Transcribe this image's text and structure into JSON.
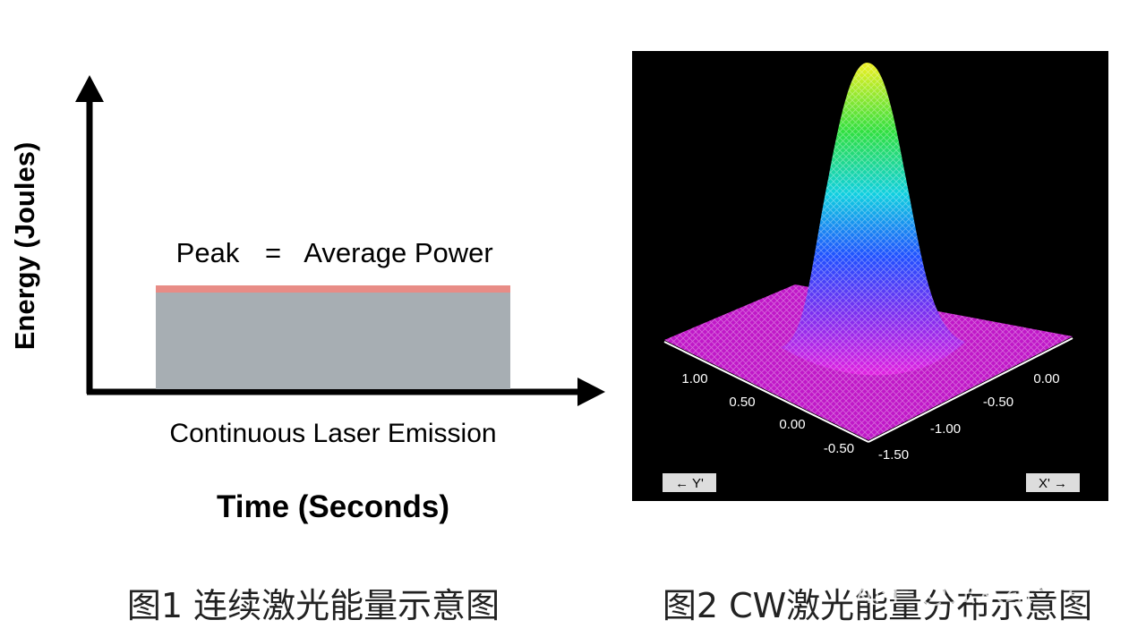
{
  "figure1": {
    "y_axis_label": "Energy (Joules)",
    "peak_label": "Peak",
    "equals": "=",
    "average_label": "Average Power",
    "emission_label": "Continuous Laser Emission",
    "x_axis_label": "Time (Seconds)",
    "caption": "图1 连续激光能量示意图"
  },
  "figure2": {
    "left_axis_labels": [
      "1.00",
      "0.50",
      "0.00",
      "-0.50"
    ],
    "right_axis_labels": [
      "0.00",
      "-0.50",
      "-1.00",
      "-1.50"
    ],
    "y_axis_tag": "← Y'",
    "x_axis_tag": "X' →",
    "caption": "图2 CW激光能量分布示意图"
  },
  "watermark": "知乎 @独众组一号"
}
